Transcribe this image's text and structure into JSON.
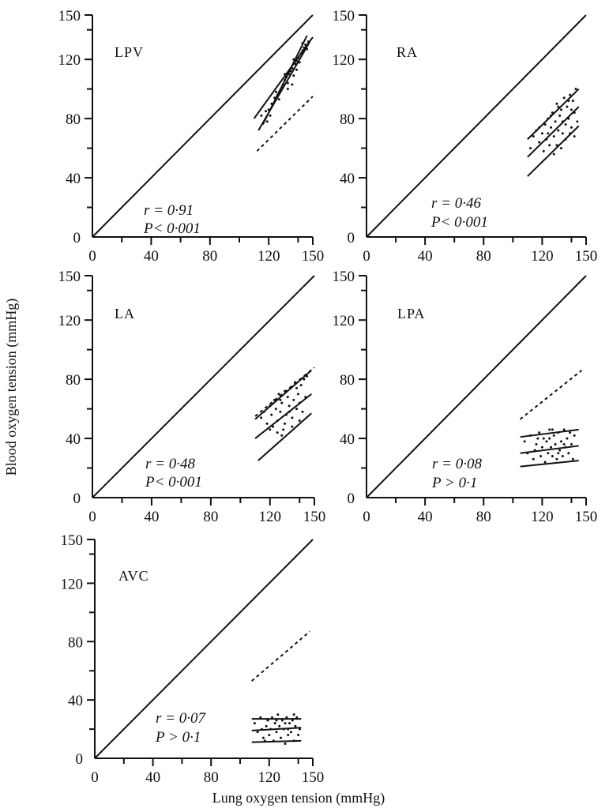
{
  "x_axis_title": "Lung oxygen tension (mmHg)",
  "y_axis_title": "Blood oxygen tension (mmHg)",
  "chart_data": [
    {
      "type": "scatter",
      "panel": "LPV",
      "xlim": [
        0,
        150
      ],
      "ylim": [
        0,
        150
      ],
      "xticks": [
        "0",
        "40",
        "80",
        "120",
        "150"
      ],
      "yticks": [
        "0",
        "40",
        "80",
        "120",
        "150"
      ],
      "stat_r": "r = 0·91",
      "stat_p": "P< 0·001",
      "identity_line": [
        [
          0,
          0
        ],
        [
          150,
          150
        ]
      ],
      "regression_lines": [
        [
          [
            110,
            80
          ],
          [
            150,
            135
          ]
        ],
        [
          [
            113,
            72
          ],
          [
            148,
            132
          ]
        ],
        [
          [
            116,
            76
          ],
          [
            146,
            136
          ]
        ]
      ],
      "reference_line": [
        [
          112,
          58
        ],
        [
          150,
          95
        ]
      ],
      "points": [
        [
          115,
          82
        ],
        [
          118,
          85
        ],
        [
          120,
          86
        ],
        [
          122,
          90
        ],
        [
          124,
          94
        ],
        [
          126,
          96
        ],
        [
          128,
          99
        ],
        [
          129,
          101
        ],
        [
          130,
          103
        ],
        [
          131,
          106
        ],
        [
          132,
          108
        ],
        [
          133,
          104
        ],
        [
          134,
          110
        ],
        [
          135,
          112
        ],
        [
          136,
          114
        ],
        [
          137,
          109
        ],
        [
          138,
          117
        ],
        [
          139,
          119
        ],
        [
          140,
          121
        ],
        [
          141,
          118
        ],
        [
          142,
          124
        ],
        [
          143,
          126
        ],
        [
          144,
          128
        ],
        [
          145,
          130
        ],
        [
          146,
          127
        ],
        [
          147,
          132
        ],
        [
          121,
          82
        ],
        [
          127,
          93
        ],
        [
          133,
          100
        ],
        [
          139,
          113
        ],
        [
          125,
          98
        ],
        [
          131,
          110
        ],
        [
          137,
          120
        ],
        [
          143,
          131
        ],
        [
          119,
          78
        ],
        [
          136,
          103
        ]
      ]
    },
    {
      "type": "scatter",
      "panel": "RA",
      "xlim": [
        0,
        150
      ],
      "ylim": [
        0,
        150
      ],
      "xticks": [
        "0",
        "40",
        "80",
        "120",
        "150"
      ],
      "yticks": [
        "0",
        "40",
        "80",
        "120",
        "150"
      ],
      "stat_r": "r = 0·46",
      "stat_p": "P< 0·001",
      "identity_line": [
        [
          0,
          0
        ],
        [
          150,
          150
        ]
      ],
      "regression_lines": [
        [
          [
            110,
            66
          ],
          [
            145,
            100
          ]
        ],
        [
          [
            110,
            54
          ],
          [
            145,
            88
          ]
        ],
        [
          [
            110,
            41
          ],
          [
            145,
            75
          ]
        ]
      ],
      "reference_line": null,
      "points": [
        [
          112,
          60
        ],
        [
          114,
          68
        ],
        [
          116,
          72
        ],
        [
          118,
          64
        ],
        [
          120,
          70
        ],
        [
          121,
          58
        ],
        [
          122,
          76
        ],
        [
          123,
          66
        ],
        [
          124,
          80
        ],
        [
          125,
          62
        ],
        [
          126,
          74
        ],
        [
          127,
          84
        ],
        [
          128,
          68
        ],
        [
          129,
          78
        ],
        [
          130,
          90
        ],
        [
          131,
          72
        ],
        [
          132,
          82
        ],
        [
          133,
          86
        ],
        [
          134,
          70
        ],
        [
          135,
          94
        ],
        [
          136,
          76
        ],
        [
          137,
          88
        ],
        [
          138,
          80
        ],
        [
          139,
          96
        ],
        [
          140,
          74
        ],
        [
          141,
          92
        ],
        [
          142,
          84
        ],
        [
          143,
          100
        ],
        [
          144,
          78
        ],
        [
          128,
          56
        ],
        [
          130,
          62
        ],
        [
          133,
          60
        ],
        [
          136,
          66
        ],
        [
          139,
          70
        ],
        [
          142,
          68
        ],
        [
          118,
          74
        ],
        [
          124,
          70
        ],
        [
          131,
          88
        ],
        [
          138,
          92
        ],
        [
          126,
          82
        ],
        [
          134,
          78
        ],
        [
          140,
          86
        ]
      ]
    },
    {
      "type": "scatter",
      "panel": "LA",
      "xlim": [
        0,
        150
      ],
      "ylim": [
        0,
        150
      ],
      "xticks": [
        "0",
        "40",
        "80",
        "120",
        "150"
      ],
      "yticks": [
        "0",
        "40",
        "80",
        "120",
        "150"
      ],
      "stat_r": "r = 0·48",
      "stat_p": "P< 0·001",
      "identity_line": [
        [
          0,
          0
        ],
        [
          150,
          150
        ]
      ],
      "regression_lines": [
        [
          [
            110,
            53
          ],
          [
            148,
            86
          ]
        ],
        [
          [
            110,
            40
          ],
          [
            148,
            70
          ]
        ],
        [
          [
            112,
            25
          ],
          [
            148,
            57
          ]
        ]
      ],
      "reference_line": [
        [
          110,
          55
        ],
        [
          150,
          88
        ]
      ],
      "points": [
        [
          114,
          54
        ],
        [
          116,
          58
        ],
        [
          118,
          50
        ],
        [
          120,
          62
        ],
        [
          121,
          56
        ],
        [
          122,
          48
        ],
        [
          123,
          66
        ],
        [
          124,
          60
        ],
        [
          125,
          52
        ],
        [
          126,
          70
        ],
        [
          127,
          58
        ],
        [
          128,
          64
        ],
        [
          129,
          46
        ],
        [
          130,
          72
        ],
        [
          131,
          56
        ],
        [
          132,
          68
        ],
        [
          133,
          62
        ],
        [
          134,
          74
        ],
        [
          135,
          54
        ],
        [
          136,
          66
        ],
        [
          137,
          78
        ],
        [
          138,
          60
        ],
        [
          139,
          70
        ],
        [
          140,
          64
        ],
        [
          141,
          76
        ],
        [
          142,
          58
        ],
        [
          143,
          80
        ],
        [
          144,
          68
        ],
        [
          145,
          82
        ],
        [
          125,
          44
        ],
        [
          130,
          50
        ],
        [
          135,
          48
        ],
        [
          140,
          52
        ],
        [
          120,
          46
        ],
        [
          128,
          42
        ],
        [
          133,
          58
        ],
        [
          138,
          74
        ],
        [
          127,
          66
        ]
      ]
    },
    {
      "type": "scatter",
      "panel": "LPA",
      "xlim": [
        0,
        150
      ],
      "ylim": [
        0,
        150
      ],
      "xticks": [
        "0",
        "40",
        "80",
        "120",
        "150"
      ],
      "yticks": [
        "0",
        "40",
        "80",
        "120",
        "150"
      ],
      "stat_r": "r = 0·08",
      "stat_p": "P > 0·1",
      "identity_line": [
        [
          0,
          0
        ],
        [
          150,
          150
        ]
      ],
      "regression_lines": [
        [
          [
            105,
            41
          ],
          [
            145,
            46
          ]
        ],
        [
          [
            105,
            30
          ],
          [
            145,
            35
          ]
        ],
        [
          [
            105,
            21
          ],
          [
            145,
            25
          ]
        ]
      ],
      "reference_line": [
        [
          105,
          53
        ],
        [
          147,
          86
        ]
      ],
      "points": [
        [
          108,
          38
        ],
        [
          110,
          30
        ],
        [
          112,
          42
        ],
        [
          114,
          26
        ],
        [
          116,
          36
        ],
        [
          118,
          44
        ],
        [
          119,
          28
        ],
        [
          120,
          34
        ],
        [
          121,
          40
        ],
        [
          122,
          24
        ],
        [
          123,
          38
        ],
        [
          124,
          30
        ],
        [
          125,
          46
        ],
        [
          126,
          34
        ],
        [
          127,
          28
        ],
        [
          128,
          42
        ],
        [
          129,
          36
        ],
        [
          130,
          26
        ],
        [
          131,
          44
        ],
        [
          132,
          32
        ],
        [
          133,
          38
        ],
        [
          134,
          28
        ],
        [
          135,
          46
        ],
        [
          136,
          34
        ],
        [
          137,
          40
        ],
        [
          138,
          30
        ],
        [
          139,
          44
        ],
        [
          140,
          36
        ],
        [
          141,
          26
        ],
        [
          142,
          42
        ],
        [
          115,
          32
        ],
        [
          125,
          40
        ],
        [
          135,
          36
        ],
        [
          131,
          30
        ],
        [
          117,
          40
        ],
        [
          127,
          46
        ]
      ]
    },
    {
      "type": "scatter",
      "panel": "AVC",
      "xlim": [
        0,
        150
      ],
      "ylim": [
        0,
        150
      ],
      "xticks": [
        "0",
        "40",
        "80",
        "120",
        "150"
      ],
      "yticks": [
        "0",
        "40",
        "80",
        "120",
        "150"
      ],
      "stat_r": "r = 0·07",
      "stat_p": "P > 0·1",
      "identity_line": [
        [
          0,
          0
        ],
        [
          150,
          150
        ]
      ],
      "regression_lines": [
        [
          [
            108,
            27
          ],
          [
            142,
            27
          ]
        ],
        [
          [
            108,
            19
          ],
          [
            142,
            21
          ]
        ],
        [
          [
            108,
            11
          ],
          [
            142,
            12
          ]
        ]
      ],
      "reference_line": [
        [
          108,
          53
        ],
        [
          148,
          87
        ]
      ],
      "points": [
        [
          110,
          24
        ],
        [
          112,
          18
        ],
        [
          114,
          28
        ],
        [
          116,
          14
        ],
        [
          118,
          22
        ],
        [
          119,
          26
        ],
        [
          120,
          16
        ],
        [
          121,
          20
        ],
        [
          122,
          28
        ],
        [
          123,
          12
        ],
        [
          124,
          24
        ],
        [
          125,
          18
        ],
        [
          126,
          30
        ],
        [
          127,
          22
        ],
        [
          128,
          14
        ],
        [
          129,
          26
        ],
        [
          130,
          20
        ],
        [
          131,
          10
        ],
        [
          132,
          28
        ],
        [
          133,
          16
        ],
        [
          134,
          24
        ],
        [
          135,
          18
        ],
        [
          136,
          26
        ],
        [
          137,
          12
        ],
        [
          138,
          22
        ],
        [
          139,
          28
        ],
        [
          140,
          16
        ],
        [
          141,
          20
        ],
        [
          115,
          20
        ],
        [
          125,
          26
        ],
        [
          131,
          24
        ],
        [
          117,
          12
        ],
        [
          133,
          20
        ],
        [
          137,
          30
        ]
      ]
    }
  ]
}
